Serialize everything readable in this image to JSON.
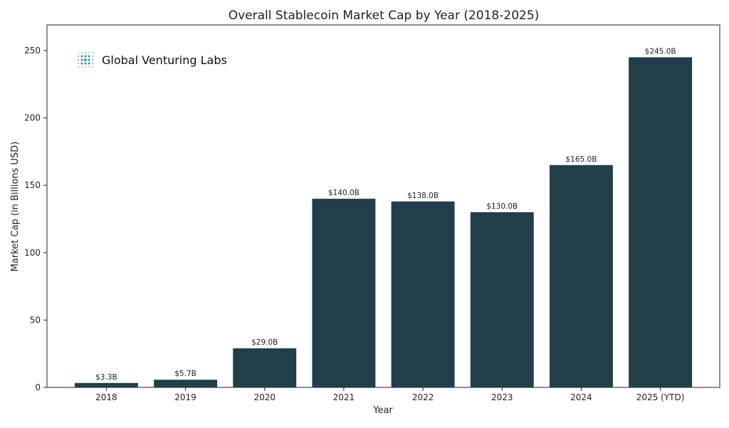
{
  "brand": {
    "name": "Global Venturing Labs",
    "icon": "dot-grid-logo-icon",
    "icon_color": "#4a9a9a"
  },
  "chart_data": {
    "type": "bar",
    "title": "Overall Stablecoin Market Cap by Year (2018-2025)",
    "xlabel": "Year",
    "ylabel": "Market Cap (in Billions USD)",
    "categories": [
      "2018",
      "2019",
      "2020",
      "2021",
      "2022",
      "2023",
      "2024",
      "2025 (YTD)"
    ],
    "values": [
      3.3,
      5.7,
      29.0,
      140.0,
      138.0,
      130.0,
      165.0,
      245.0
    ],
    "data_labels": [
      "$3.3B",
      "$5.7B",
      "$29.0B",
      "$140.0B",
      "$138.0B",
      "$130.0B",
      "$165.0B",
      "$245.0B"
    ],
    "ylim": [
      0,
      269
    ],
    "yticks": [
      0,
      50,
      100,
      150,
      200,
      250
    ],
    "bar_color": "#213e4a",
    "grid": false,
    "legend": "none"
  }
}
